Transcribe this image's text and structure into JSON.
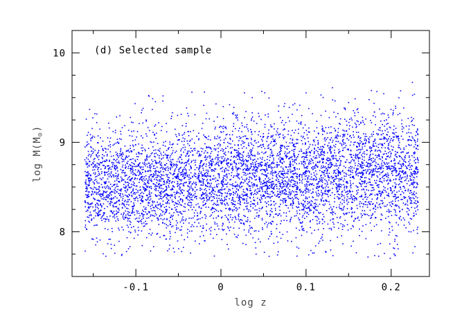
{
  "chart_data": {
    "type": "scatter",
    "panel_label": "(d) Selected sample",
    "xlabel": "log z",
    "ylabel_main": "log M(M",
    "ylabel_symbol": "⊙",
    "ylabel_close": ")",
    "xlim": [
      -0.175,
      0.245
    ],
    "ylim": [
      7.5,
      10.25
    ],
    "x_ticks": [
      {
        "value": -0.1,
        "label": "-0.1"
      },
      {
        "value": 0.0,
        "label": "0"
      },
      {
        "value": 0.1,
        "label": "0.1"
      },
      {
        "value": 0.2,
        "label": "0.2"
      }
    ],
    "y_ticks": [
      {
        "value": 8,
        "label": "8"
      },
      {
        "value": 9,
        "label": "9"
      },
      {
        "value": 10,
        "label": "10"
      }
    ],
    "point_color": "#0000ff",
    "series": [
      {
        "x": [
          -0.155,
          -0.152,
          -0.148,
          -0.145,
          -0.141,
          -0.137,
          -0.133,
          -0.128,
          -0.124,
          -0.119,
          -0.114,
          -0.109,
          -0.103,
          -0.098,
          -0.092,
          -0.086,
          -0.08,
          -0.074,
          -0.068,
          -0.062,
          -0.055,
          -0.049,
          -0.042,
          -0.035,
          -0.028,
          -0.021,
          -0.014,
          -0.007,
          0.0,
          0.007,
          0.014,
          0.021,
          0.028,
          0.035,
          0.042,
          0.049,
          0.056,
          0.063,
          0.07,
          0.077,
          0.084,
          0.091,
          0.098,
          0.105,
          0.112,
          0.119,
          0.126,
          0.133,
          0.14,
          0.147,
          0.154,
          0.161,
          0.168,
          0.175,
          0.182,
          0.189,
          0.196,
          0.203,
          0.21,
          0.217,
          0.224,
          0.228
        ],
        "y": [
          8.65,
          8.42,
          8.91,
          8.18,
          8.77,
          8.55,
          9.05,
          8.33,
          8.62,
          8.85,
          8.21,
          8.71,
          8.48,
          9.12,
          8.39,
          8.68,
          8.95,
          8.26,
          8.59,
          8.8,
          8.44,
          9.08,
          8.63,
          8.36,
          8.88,
          8.52,
          8.74,
          9.15,
          8.47,
          8.69,
          8.32,
          8.93,
          8.58,
          8.81,
          9.21,
          8.45,
          8.72,
          8.97,
          8.51,
          8.84,
          8.38,
          9.1,
          8.66,
          8.89,
          8.49,
          9.18,
          8.75,
          8.56,
          8.99,
          8.62,
          9.25,
          8.83,
          8.47,
          9.06,
          8.71,
          8.94,
          8.58,
          9.14,
          8.79,
          8.65,
          9.02,
          8.88
        ]
      }
    ],
    "annotations": [
      {
        "x": 0.048,
        "y": 9.57
      },
      {
        "x": 0.131,
        "y": 9.61
      },
      {
        "x": 0.225,
        "y": 9.67
      }
    ]
  }
}
